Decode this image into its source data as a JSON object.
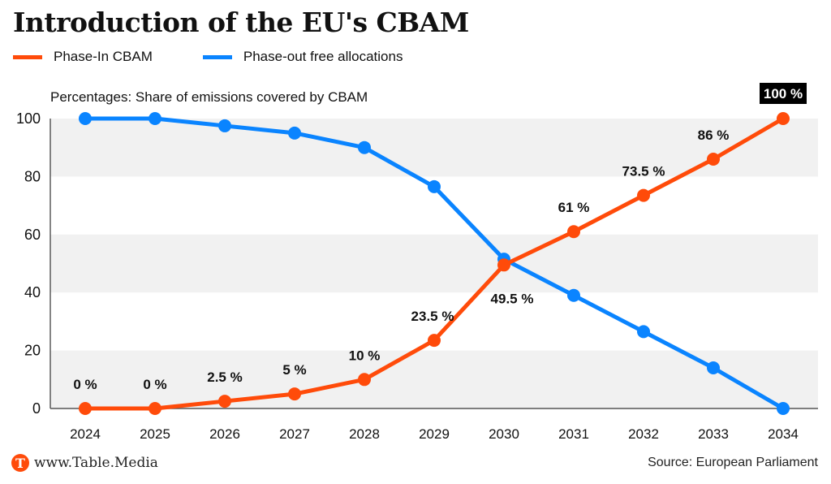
{
  "header": {
    "title": "Introduction of the EU's CBAM",
    "subtitle": "Percentages: Share of emissions covered by CBAM"
  },
  "footer": {
    "logo_letter": "T",
    "site": "www.Table.Media",
    "source": "Source: European Parliament"
  },
  "colors": {
    "phase_in": "#ff4b0a",
    "phase_out": "#0a84ff",
    "band": "#f1f1f1",
    "highlight_label_bg": "#000000"
  },
  "chart_data": {
    "type": "line",
    "title": "Introduction of the EU's CBAM",
    "subtitle": "Percentages: Share of emissions covered by CBAM",
    "xlabel": "",
    "ylabel": "",
    "x": [
      "2024",
      "2025",
      "2026",
      "2027",
      "2028",
      "2029",
      "2030",
      "2031",
      "2032",
      "2033",
      "2034"
    ],
    "ylim": [
      0,
      100
    ],
    "yticks": [
      0,
      20,
      40,
      60,
      80,
      100
    ],
    "grid": "alternating horizontal bands",
    "legend_position": "top-left",
    "series": [
      {
        "name": "Phase-In CBAM",
        "color": "#ff4b0a",
        "values": [
          0,
          0,
          2.5,
          5,
          10,
          23.5,
          49.5,
          61,
          73.5,
          86,
          100
        ],
        "labels": [
          "0 %",
          "0 %",
          "2.5 %",
          "5 %",
          "10 %",
          "23.5 %",
          "49.5 %",
          "61 %",
          "73.5 %",
          "86 %",
          "100 %"
        ]
      },
      {
        "name": "Phase-out free allocations",
        "color": "#0a84ff",
        "values": [
          100,
          100,
          97.5,
          95,
          90,
          76.5,
          51.5,
          39,
          26.5,
          14,
          0
        ]
      }
    ]
  }
}
